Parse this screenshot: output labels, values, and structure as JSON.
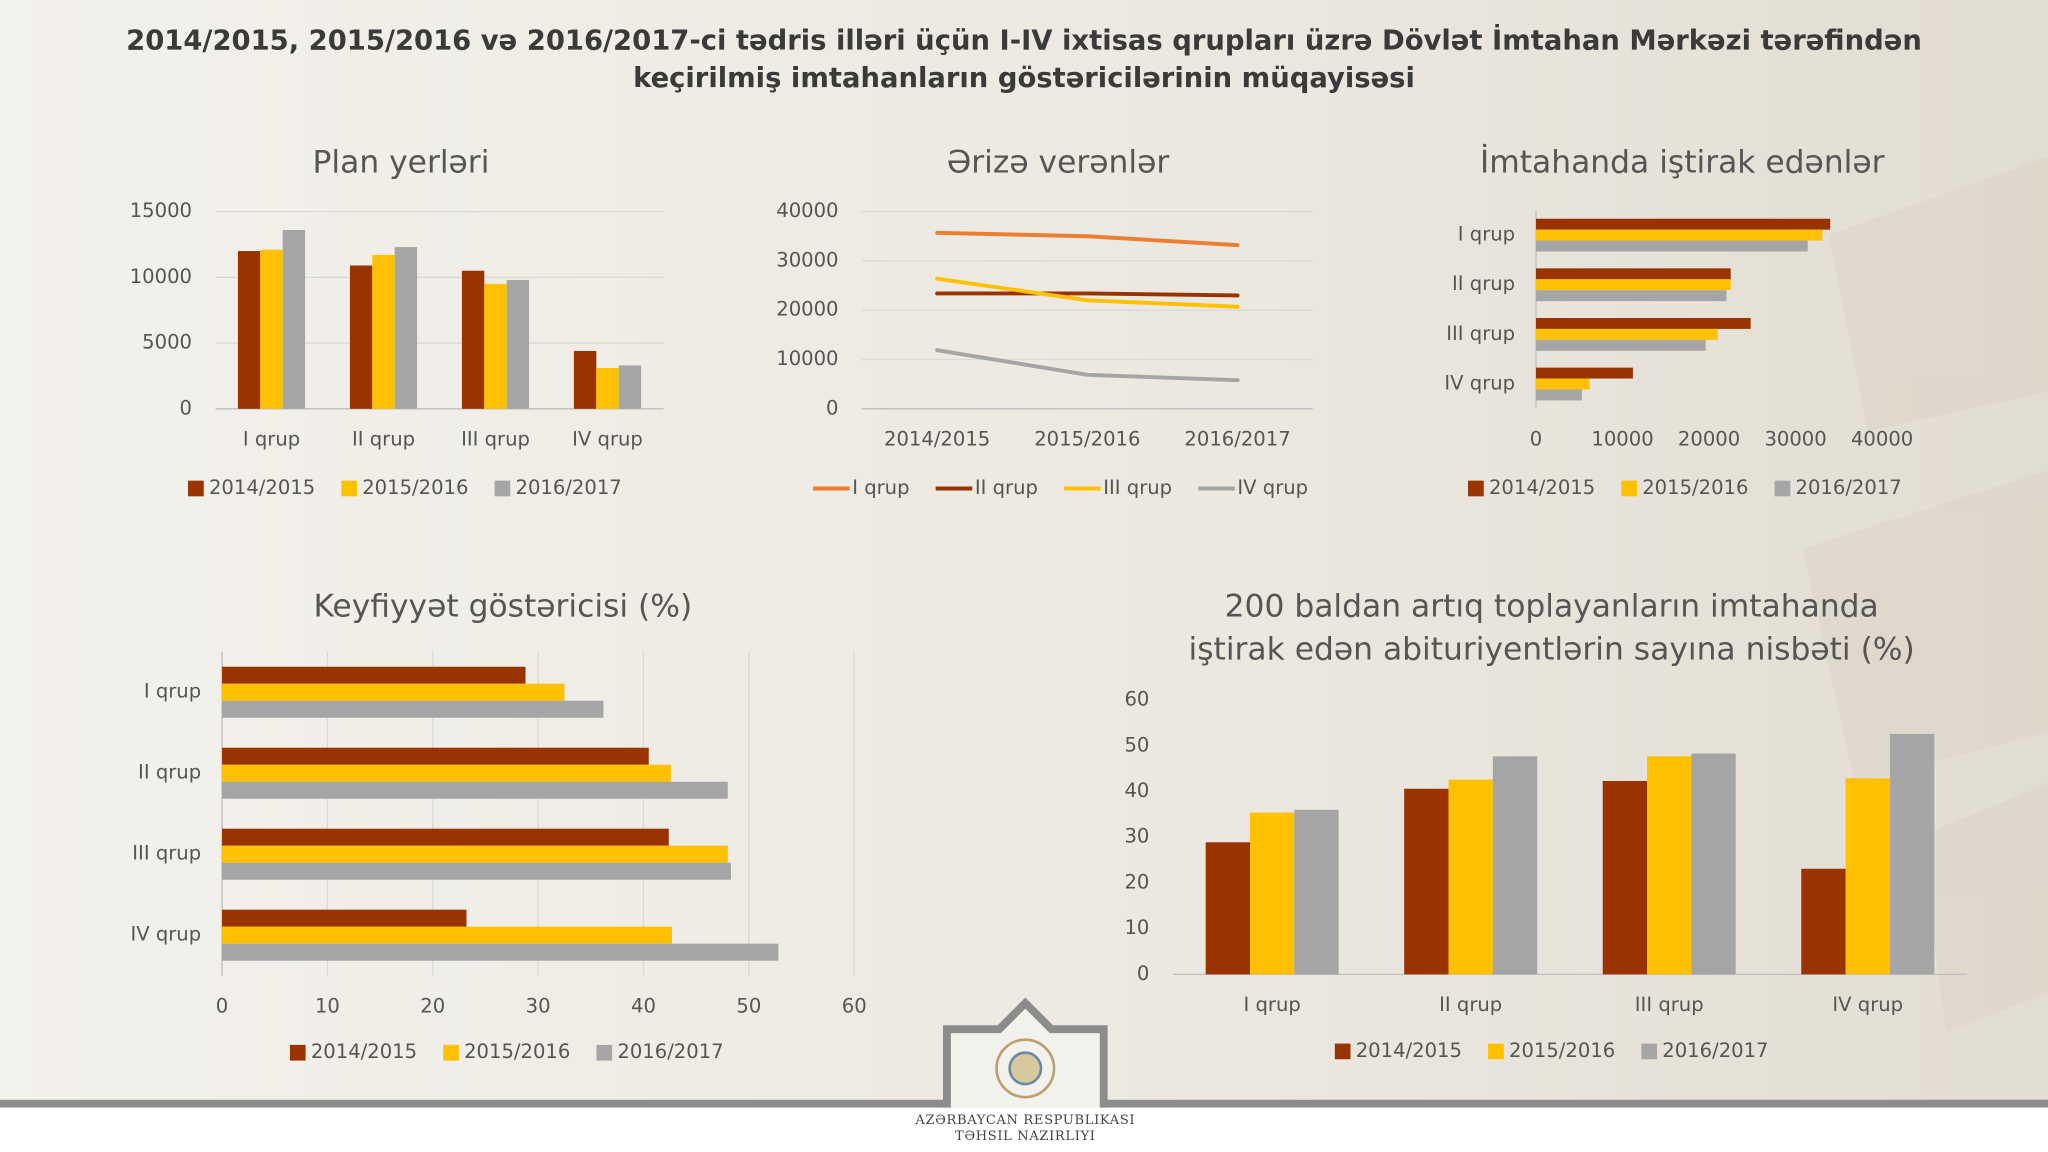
{
  "title": [
    "2014/2015, 2015/2016 və 2016/2017-ci tədris illəri üçün I-IV ixtisas qrupları üzrə Dövlət İmtahan Mərkəzi tərəfindən",
    "keçirilmiş imtahanların göstəricilərinin müqayisəsi"
  ],
  "footer": [
    "AZƏRBAYCAN RESPUBLIKASI",
    "TƏHSIL NAZIRLIYI"
  ],
  "chart_data": [
    {
      "type": "bar",
      "title": [
        "Plan yerləri"
      ],
      "categories": [
        "I qrup",
        "II qrup",
        "III qrup",
        "IV qrup"
      ],
      "series": [
        {
          "name": "2014/2015",
          "color": "#993300",
          "values": [
            12000,
            10900,
            10500,
            4400
          ]
        },
        {
          "name": "2015/2016",
          "color": "#FFC000",
          "values": [
            12100,
            11700,
            9500,
            3100
          ]
        },
        {
          "name": "2016/2017",
          "color": "#A5A5A5",
          "values": [
            13600,
            12300,
            9800,
            3300
          ]
        }
      ],
      "ylim": [
        0,
        15000
      ],
      "yticks": [
        0,
        5000,
        10000,
        15000
      ],
      "grid": true,
      "legend": "bottom"
    },
    {
      "type": "line",
      "title": [
        "Ərizə verənlər"
      ],
      "categories": [
        "2014/2015",
        "2015/2016",
        "2016/2017"
      ],
      "series": [
        {
          "name": "I qrup",
          "color": "#ED7D31",
          "values": [
            35700,
            35000,
            33200
          ]
        },
        {
          "name": "II qrup",
          "color": "#993300",
          "values": [
            23400,
            23400,
            23000
          ]
        },
        {
          "name": "III qrup",
          "color": "#FFC000",
          "values": [
            26400,
            22000,
            20700
          ]
        },
        {
          "name": "IV qrup",
          "color": "#A5A5A5",
          "values": [
            11900,
            6900,
            5800
          ]
        }
      ],
      "ylim": [
        0,
        40000
      ],
      "yticks": [
        0,
        10000,
        20000,
        30000,
        40000
      ],
      "grid": true,
      "legend": "bottom"
    },
    {
      "type": "hbar",
      "title": [
        "İmtahanda iştirak edənlər"
      ],
      "categories": [
        "I qrup",
        "II qrup",
        "III qrup",
        "IV qrup"
      ],
      "series": [
        {
          "name": "2014/2015",
          "color": "#993300",
          "values": [
            34000,
            22500,
            24800,
            11200
          ]
        },
        {
          "name": "2015/2016",
          "color": "#FFC000",
          "values": [
            33100,
            22500,
            21000,
            6200
          ]
        },
        {
          "name": "2016/2017",
          "color": "#A5A5A5",
          "values": [
            31400,
            22000,
            19600,
            5300
          ]
        }
      ],
      "xlim": [
        0,
        40000
      ],
      "xticks": [
        0,
        10000,
        20000,
        30000,
        40000
      ],
      "grid": false,
      "legend": "bottom"
    },
    {
      "type": "hbar",
      "title": [
        "Keyfiyyət göstəricisi (%)"
      ],
      "categories": [
        "I qrup",
        "II qrup",
        "III qrup",
        "IV qrup"
      ],
      "series": [
        {
          "name": "2014/2015",
          "color": "#993300",
          "values": [
            28.8,
            40.5,
            42.4,
            23.2
          ]
        },
        {
          "name": "2015/2016",
          "color": "#FFC000",
          "values": [
            32.5,
            42.6,
            48.0,
            42.7
          ]
        },
        {
          "name": "2016/2017",
          "color": "#A5A5A5",
          "values": [
            36.2,
            48.0,
            48.3,
            52.8
          ]
        }
      ],
      "xlim": [
        0,
        60
      ],
      "xticks": [
        0,
        10,
        20,
        30,
        40,
        50,
        60
      ],
      "grid": true,
      "legend": "bottom"
    },
    {
      "type": "bar",
      "title": [
        "200 baldan artıq toplayanların imtahanda",
        "iştirak edən abituriyentlərin sayına nisbəti (%)"
      ],
      "categories": [
        "I qrup",
        "II qrup",
        "III qrup",
        "IV qrup"
      ],
      "series": [
        {
          "name": "2014/2015",
          "color": "#993300",
          "values": [
            28.9,
            40.6,
            42.3,
            23.1
          ]
        },
        {
          "name": "2015/2016",
          "color": "#FFC000",
          "values": [
            35.4,
            42.6,
            47.7,
            42.9
          ]
        },
        {
          "name": "2016/2017",
          "color": "#A5A5A5",
          "values": [
            36.0,
            47.7,
            48.3,
            52.6
          ]
        }
      ],
      "ylim": [
        0,
        60
      ],
      "yticks": [
        0,
        10,
        20,
        30,
        40,
        50,
        60
      ],
      "grid": false,
      "legend": "bottom"
    }
  ]
}
